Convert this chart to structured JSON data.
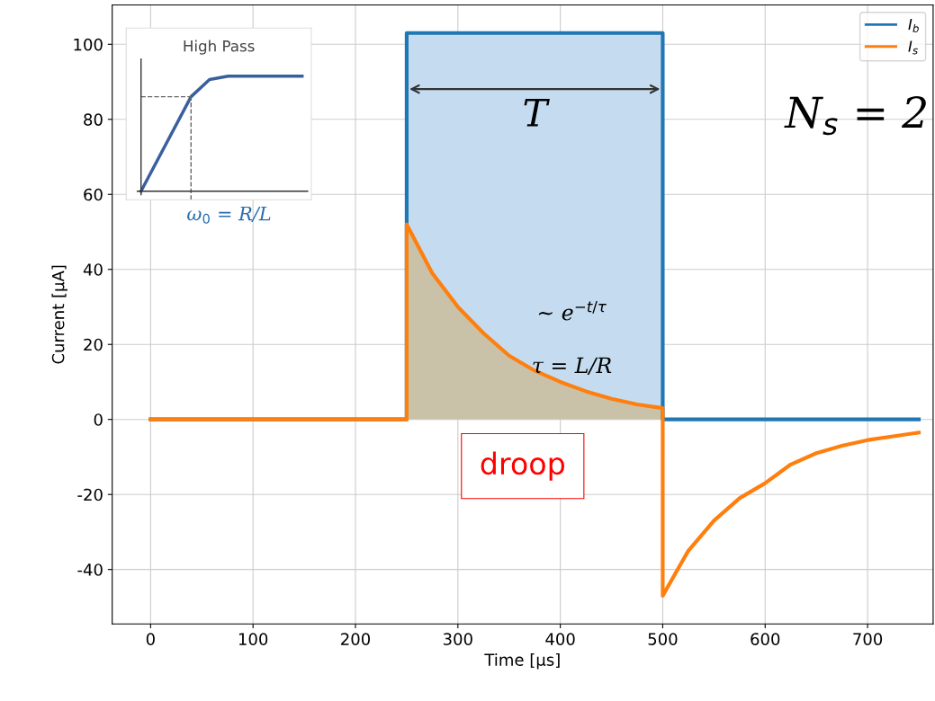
{
  "chart_data": {
    "type": "line",
    "xlabel": "Time [μs]",
    "ylabel": "Current [μA]",
    "xlim": [
      -37.5,
      764
    ],
    "xticks": [
      0,
      100,
      200,
      300,
      400,
      500,
      600,
      700
    ],
    "ylim": [
      -54.5,
      110.5
    ],
    "yticks": [
      -40,
      -20,
      0,
      20,
      40,
      60,
      80,
      100
    ],
    "grid": true,
    "legend": "top right",
    "marker": "none",
    "line_style": "solid",
    "series": [
      {
        "type": "area",
        "color": "#c5dcf0",
        "x": [
          250,
          500
        ],
        "values": [
          103,
          103
        ]
      },
      {
        "type": "area",
        "color": "#c9c2a8",
        "x": [
          250,
          275,
          300,
          325,
          350,
          375,
          400,
          425,
          450,
          475,
          500
        ],
        "values": [
          52,
          39,
          30,
          23,
          17,
          13,
          10,
          7.5,
          5.5,
          4,
          3
        ]
      },
      {
        "name": "I$_{b}$",
        "color": "#1f77b4",
        "x": [
          0,
          250,
          250,
          500,
          500,
          750
        ],
        "values": [
          0,
          0,
          103,
          103,
          0,
          0
        ]
      },
      {
        "name": "I$_{s}$",
        "color": "#ff7f0e",
        "x": [
          0,
          250,
          250,
          275,
          300,
          325,
          350,
          375,
          400,
          425,
          450,
          475,
          500,
          500,
          525,
          550,
          575,
          600,
          625,
          650,
          675,
          700,
          725,
          750
        ],
        "values": [
          0,
          0,
          52,
          39,
          30,
          23,
          17,
          13,
          10,
          7.5,
          5.5,
          4,
          3,
          -47,
          -35,
          -27,
          -21,
          -17,
          -12,
          -9,
          -7,
          -5.5,
          -4.5,
          -3.5
        ]
      }
    ],
    "annotations": [
      "T",
      "N$_{s}$ = 2",
      "∼ e$^{−t/τ}$",
      "τ = L/R",
      "droop",
      "High Pass",
      "ω$_{0}$ = R/L"
    ]
  }
}
